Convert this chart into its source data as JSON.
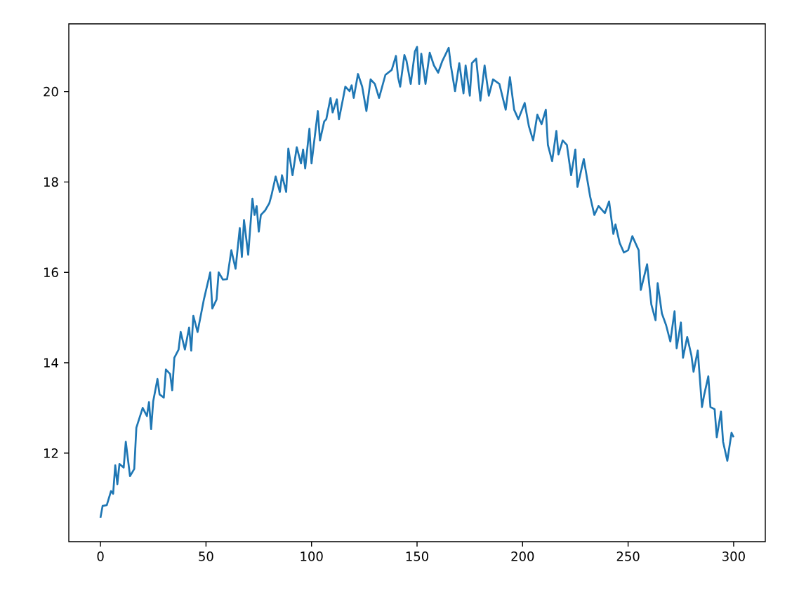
{
  "chart_data": {
    "type": "line",
    "color": "#1f77b4",
    "x": [
      0,
      1,
      3,
      5,
      6,
      7,
      8,
      9,
      11,
      12,
      14,
      16,
      17,
      20,
      22,
      23,
      24,
      25,
      27,
      28,
      30,
      31,
      33,
      34,
      35,
      37,
      38,
      40,
      42,
      43,
      44,
      46,
      49,
      52,
      53,
      55,
      56,
      58,
      60,
      62,
      64,
      66,
      67,
      68,
      70,
      72,
      73,
      74,
      75,
      76,
      78,
      80,
      81,
      83,
      85,
      86,
      88,
      89,
      91,
      93,
      95,
      96,
      97,
      99,
      100,
      103,
      104,
      106,
      107,
      109,
      110,
      112,
      113,
      115,
      116,
      118,
      119,
      120,
      122,
      124,
      126,
      128,
      130,
      132,
      135,
      138,
      140,
      141,
      142,
      144,
      145,
      147,
      149,
      150,
      151,
      152,
      154,
      156,
      158,
      160,
      162,
      165,
      166,
      168,
      170,
      172,
      173,
      175,
      176,
      178,
      180,
      182,
      184,
      186,
      189,
      192,
      194,
      196,
      198,
      201,
      203,
      205,
      207,
      209,
      211,
      212,
      214,
      216,
      217,
      219,
      221,
      223,
      225,
      226,
      229,
      232,
      234,
      236,
      239,
      241,
      243,
      244,
      246,
      248,
      250,
      252,
      255,
      256,
      259,
      261,
      263,
      264,
      266,
      268,
      270,
      272,
      273,
      275,
      276,
      278,
      280,
      281,
      283,
      285,
      286,
      288,
      289,
      291,
      292,
      294,
      295,
      297,
      299,
      300
    ],
    "values": [
      10.57,
      10.83,
      10.85,
      11.16,
      11.1,
      11.73,
      11.31,
      11.76,
      11.68,
      12.25,
      11.49,
      11.65,
      12.56,
      13.0,
      12.82,
      13.13,
      12.53,
      13.15,
      13.64,
      13.3,
      13.23,
      13.85,
      13.75,
      13.39,
      14.11,
      14.29,
      14.68,
      14.29,
      14.78,
      14.27,
      15.04,
      14.68,
      15.4,
      16.0,
      15.2,
      15.4,
      16.0,
      15.84,
      15.85,
      16.49,
      16.08,
      16.98,
      16.34,
      17.16,
      16.39,
      17.63,
      17.27,
      17.47,
      16.9,
      17.27,
      17.37,
      17.53,
      17.7,
      18.12,
      17.78,
      18.15,
      17.78,
      18.74,
      18.15,
      18.77,
      18.41,
      18.72,
      18.3,
      19.18,
      18.41,
      19.57,
      18.92,
      19.34,
      19.39,
      19.86,
      19.54,
      19.83,
      19.39,
      19.86,
      20.11,
      20.01,
      20.14,
      19.86,
      20.39,
      20.11,
      19.57,
      20.27,
      20.17,
      19.86,
      20.37,
      20.48,
      20.79,
      20.32,
      20.11,
      20.81,
      20.68,
      20.17,
      20.89,
      20.99,
      20.17,
      20.84,
      20.17,
      20.86,
      20.58,
      20.42,
      20.68,
      20.97,
      20.58,
      20.01,
      20.63,
      19.96,
      20.58,
      19.91,
      20.63,
      20.73,
      19.8,
      20.58,
      19.91,
      20.27,
      20.17,
      19.6,
      20.32,
      19.6,
      19.39,
      19.75,
      19.23,
      18.92,
      19.49,
      19.28,
      19.6,
      18.82,
      18.46,
      19.13,
      18.61,
      18.92,
      18.82,
      18.15,
      18.72,
      17.89,
      18.51,
      17.68,
      17.27,
      17.47,
      17.31,
      17.57,
      16.85,
      17.06,
      16.65,
      16.44,
      16.49,
      16.8,
      16.49,
      15.61,
      16.18,
      15.29,
      14.94,
      15.76,
      15.09,
      14.83,
      14.47,
      15.14,
      14.32,
      14.89,
      14.11,
      14.57,
      14.16,
      13.8,
      14.27,
      13.02,
      13.28,
      13.7,
      13.02,
      12.97,
      12.35,
      12.92,
      12.25,
      11.83,
      12.45,
      12.35
    ],
    "xlim": [
      -15,
      315
    ],
    "ylim": [
      10.04,
      21.5
    ],
    "xticks": [
      0,
      50,
      100,
      150,
      200,
      250,
      300
    ],
    "yticks": [
      12,
      14,
      16,
      18,
      20
    ]
  }
}
